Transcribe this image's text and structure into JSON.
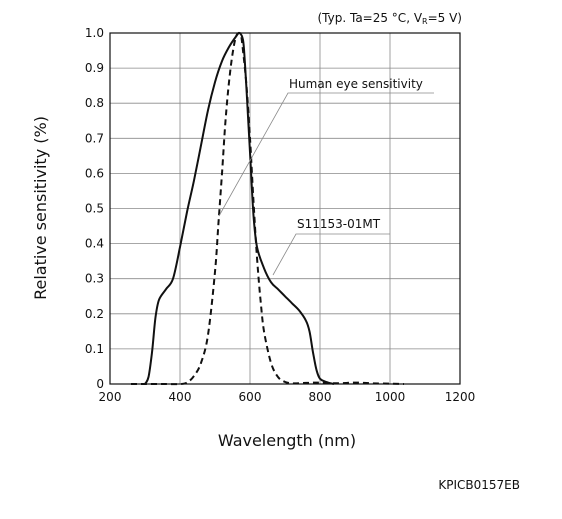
{
  "chart_data": {
    "type": "line",
    "title": "",
    "condition_note": "(Typ. Ta=25 °C, V",
    "condition_sub": "R",
    "condition_end": "=5 V)",
    "xlabel": "Wavelength (nm)",
    "ylabel": "Relative sensitivity (%)",
    "xlim": [
      200,
      1200
    ],
    "ylim": [
      0,
      1.0
    ],
    "grid": true,
    "x_ticks": [
      200,
      400,
      600,
      800,
      1000,
      1200
    ],
    "y_ticks": [
      0,
      0.1,
      0.2,
      0.3,
      0.4,
      0.5,
      0.6,
      0.7,
      0.8,
      0.9,
      1.0
    ],
    "x_tick_labels": [
      "200",
      "400",
      "600",
      "800",
      "1000",
      "1200"
    ],
    "y_tick_labels": [
      "0",
      "0.1",
      "0.2",
      "0.3",
      "0.4",
      "0.5",
      "0.6",
      "0.7",
      "0.8",
      "0.9",
      "1.0"
    ],
    "series": [
      {
        "name": "S11153-01MT",
        "style": "solid",
        "x": [
          300,
          310,
          320,
          330,
          340,
          360,
          380,
          400,
          420,
          440,
          460,
          480,
          500,
          520,
          540,
          560,
          570,
          580,
          585,
          590,
          600,
          610,
          620,
          640,
          660,
          680,
          700,
          720,
          740,
          760,
          770,
          780,
          790,
          800,
          820,
          840
        ],
        "y": [
          0.0,
          0.02,
          0.09,
          0.19,
          0.24,
          0.27,
          0.3,
          0.39,
          0.49,
          0.58,
          0.68,
          0.78,
          0.86,
          0.92,
          0.96,
          0.99,
          1.0,
          0.98,
          0.92,
          0.84,
          0.66,
          0.48,
          0.39,
          0.33,
          0.29,
          0.27,
          0.25,
          0.23,
          0.21,
          0.18,
          0.15,
          0.09,
          0.04,
          0.015,
          0.005,
          0.0
        ]
      },
      {
        "name": "Human eye sensitivity",
        "style": "dashed",
        "x": [
          260,
          300,
          350,
          400,
          420,
          440,
          460,
          480,
          500,
          510,
          520,
          530,
          540,
          550,
          560,
          570,
          575,
          580,
          590,
          600,
          610,
          620,
          630,
          640,
          660,
          680,
          700,
          720,
          760,
          800,
          850,
          900,
          950,
          1000,
          1040
        ],
        "y": [
          0.0,
          0.0,
          0.0,
          0.0,
          0.004,
          0.023,
          0.06,
          0.14,
          0.32,
          0.46,
          0.6,
          0.75,
          0.86,
          0.94,
          0.99,
          1.0,
          0.99,
          0.95,
          0.85,
          0.7,
          0.52,
          0.36,
          0.24,
          0.15,
          0.06,
          0.02,
          0.006,
          0.002,
          0.003,
          0.004,
          0.002,
          0.004,
          0.002,
          0.001,
          0.0
        ]
      }
    ],
    "annotations": [
      {
        "text": "Human eye sensitivity"
      },
      {
        "text": "S11153-01MT"
      }
    ],
    "figure_code": "KPICB0157EB"
  }
}
